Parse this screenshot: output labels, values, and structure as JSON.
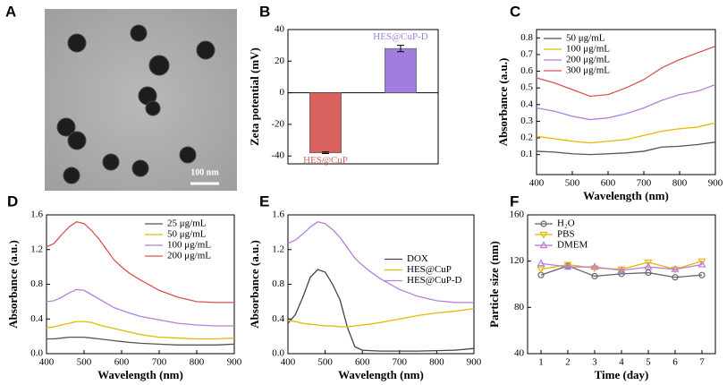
{
  "image_panel": {
    "panel": "A",
    "scale_bar_label": "100 nm"
  },
  "chart_data": [
    {
      "type": "bar",
      "panel": "B",
      "ylabel": "Zeta potential (mV)",
      "categories": [
        "HES@CuP",
        "HES@CuP-D"
      ],
      "values": [
        -38,
        28
      ],
      "errors": [
        0.5,
        2
      ],
      "colors": [
        "#d9625e",
        "#a07ee0"
      ],
      "ylim": [
        -45,
        40
      ],
      "yticks": [
        -40,
        -20,
        0,
        20,
        40
      ]
    },
    {
      "type": "line",
      "panel": "C",
      "xlabel": "Wavelength (nm)",
      "ylabel": "Absorbance (a.u.)",
      "x": [
        400,
        450,
        500,
        550,
        600,
        650,
        700,
        750,
        800,
        850,
        900
      ],
      "xlim": [
        400,
        900
      ],
      "xticks": [
        400,
        500,
        600,
        700,
        800,
        900
      ],
      "ylim": [
        -0.02,
        0.85
      ],
      "yticks": [
        0.1,
        0.2,
        0.3,
        0.4,
        0.5,
        0.6,
        0.7,
        0.8
      ],
      "legend": "top-left",
      "series": [
        {
          "name": "50 μg/mL",
          "color": "#555555",
          "values": [
            0.12,
            0.115,
            0.105,
            0.1,
            0.105,
            0.11,
            0.12,
            0.145,
            0.15,
            0.16,
            0.175
          ]
        },
        {
          "name": "100 μg/mL",
          "color": "#e6b800",
          "values": [
            0.21,
            0.195,
            0.18,
            0.17,
            0.18,
            0.19,
            0.215,
            0.24,
            0.255,
            0.265,
            0.29
          ]
        },
        {
          "name": "200 μg/mL",
          "color": "#b57edc",
          "values": [
            0.38,
            0.36,
            0.33,
            0.31,
            0.32,
            0.345,
            0.38,
            0.425,
            0.46,
            0.48,
            0.52
          ]
        },
        {
          "name": "300 μg/mL",
          "color": "#d9534f",
          "values": [
            0.56,
            0.53,
            0.49,
            0.45,
            0.46,
            0.5,
            0.55,
            0.62,
            0.67,
            0.71,
            0.75
          ]
        }
      ]
    },
    {
      "type": "line",
      "panel": "D",
      "xlabel": "Wavelength (nm)",
      "ylabel": "Absorbance (a.u.)",
      "x": [
        400,
        420,
        440,
        460,
        480,
        500,
        520,
        540,
        560,
        580,
        600,
        620,
        650,
        700,
        750,
        800,
        850,
        900
      ],
      "xlim": [
        400,
        900
      ],
      "xticks": [
        400,
        500,
        600,
        700,
        800,
        900
      ],
      "ylim": [
        0,
        1.6
      ],
      "yticks": [
        {
          "value": 0,
          "label": "0.0"
        },
        0.4,
        0.8,
        1.2,
        1.6
      ],
      "legend": "top-right",
      "series": [
        {
          "name": "25 μg/mL",
          "color": "#555555",
          "values": [
            0.17,
            0.17,
            0.18,
            0.19,
            0.19,
            0.19,
            0.18,
            0.17,
            0.16,
            0.15,
            0.14,
            0.13,
            0.12,
            0.11,
            0.1,
            0.1,
            0.1,
            0.11
          ]
        },
        {
          "name": "50 μg/mL",
          "color": "#e6b800",
          "values": [
            0.3,
            0.31,
            0.33,
            0.35,
            0.37,
            0.37,
            0.36,
            0.33,
            0.31,
            0.29,
            0.27,
            0.25,
            0.22,
            0.19,
            0.18,
            0.17,
            0.17,
            0.18
          ]
        },
        {
          "name": "100 μg/mL",
          "color": "#b57edc",
          "values": [
            0.6,
            0.61,
            0.65,
            0.7,
            0.74,
            0.73,
            0.68,
            0.63,
            0.58,
            0.53,
            0.5,
            0.47,
            0.43,
            0.39,
            0.35,
            0.33,
            0.32,
            0.32
          ]
        },
        {
          "name": "200 μg/mL",
          "color": "#d9534f",
          "values": [
            1.23,
            1.27,
            1.37,
            1.46,
            1.52,
            1.5,
            1.42,
            1.32,
            1.2,
            1.08,
            1.0,
            0.93,
            0.85,
            0.73,
            0.65,
            0.6,
            0.59,
            0.59
          ]
        }
      ]
    },
    {
      "type": "line",
      "panel": "E",
      "xlabel": "Wavelength (nm)",
      "ylabel": "Absorbance (a.u.)",
      "x": [
        400,
        420,
        440,
        460,
        480,
        500,
        520,
        540,
        560,
        580,
        600,
        620,
        650,
        700,
        750,
        800,
        850,
        900
      ],
      "xlim": [
        400,
        900
      ],
      "xticks": [
        400,
        500,
        600,
        700,
        800,
        900
      ],
      "ylim": [
        0,
        1.6
      ],
      "yticks": [
        {
          "value": 0,
          "label": "0.0"
        },
        0.4,
        0.8,
        1.2,
        1.6
      ],
      "legend": "center-right",
      "series": [
        {
          "name": "DOX",
          "color": "#444444",
          "values": [
            0.35,
            0.45,
            0.65,
            0.88,
            0.97,
            0.94,
            0.8,
            0.62,
            0.3,
            0.08,
            0.04,
            0.035,
            0.03,
            0.03,
            0.03,
            0.035,
            0.04,
            0.06
          ]
        },
        {
          "name": "HES@CuP",
          "color": "#e6b800",
          "values": [
            0.38,
            0.37,
            0.35,
            0.34,
            0.33,
            0.32,
            0.32,
            0.31,
            0.31,
            0.32,
            0.33,
            0.34,
            0.36,
            0.4,
            0.44,
            0.47,
            0.49,
            0.52
          ]
        },
        {
          "name": "HES@CuP-D",
          "color": "#b57edc",
          "values": [
            1.27,
            1.31,
            1.38,
            1.46,
            1.52,
            1.5,
            1.43,
            1.34,
            1.22,
            1.1,
            1.02,
            0.95,
            0.86,
            0.74,
            0.66,
            0.61,
            0.59,
            0.59
          ]
        }
      ]
    },
    {
      "type": "line",
      "panel": "F",
      "xlabel": "Time (day)",
      "ylabel": "Particle size (nm)",
      "x": [
        1,
        2,
        3,
        4,
        5,
        6,
        7
      ],
      "xlim": [
        0.5,
        7.5
      ],
      "xticks": [
        1,
        2,
        3,
        4,
        5,
        6,
        7
      ],
      "ylim": [
        40,
        160
      ],
      "yticks": [
        40,
        80,
        120,
        160
      ],
      "legend": "top-left",
      "markers": true,
      "series": [
        {
          "name": "H₂O",
          "color": "#666666",
          "values": [
            108,
            116,
            107,
            109,
            110,
            106,
            108
          ]
        },
        {
          "name": "PBS",
          "color": "#e6b800",
          "values": [
            113,
            117,
            114,
            113,
            119,
            113,
            120
          ]
        },
        {
          "name": "DMEM",
          "color": "#b57edc",
          "values": [
            118,
            115,
            115,
            112,
            115,
            113,
            117
          ]
        }
      ]
    }
  ]
}
